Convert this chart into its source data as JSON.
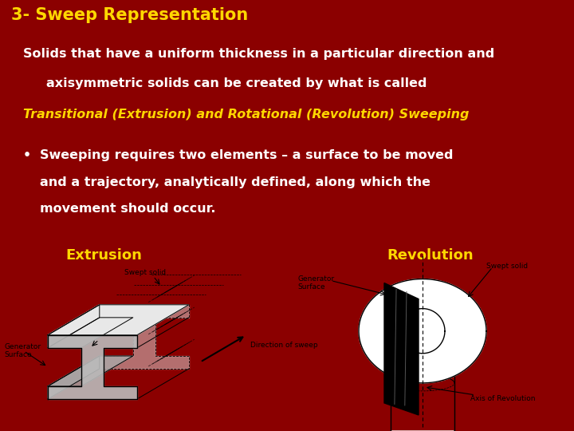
{
  "bg_color": "#8B0000",
  "white_color": "#FFFFFF",
  "title": "3- Sweep Representation",
  "title_color": "#FFD700",
  "title_fontsize": 15,
  "subtitle_line1": "Solids that have a uniform thickness in a particular direction and",
  "subtitle_line2": "axisymmetric solids can be created by what is called",
  "subtitle_color": "#FFFFFF",
  "subtitle_fontsize": 11.5,
  "italic_line": "Transitional (Extrusion) and Rotational (Revolution) Sweeping",
  "italic_color": "#FFD700",
  "italic_fontsize": 11.5,
  "bullet_lines": [
    "Sweeping requires two elements – a surface to be moved",
    "and a trajectory, analytically defined, along which the",
    "movement should occur."
  ],
  "bullet_color": "#FFFFFF",
  "bullet_fontsize": 11.5,
  "extrusion_label": "Extrusion",
  "revolution_label": "Revolution",
  "label_color": "#FFD700",
  "label_fontsize": 13,
  "gray_color": "#999999",
  "dark_gray": "#555555"
}
